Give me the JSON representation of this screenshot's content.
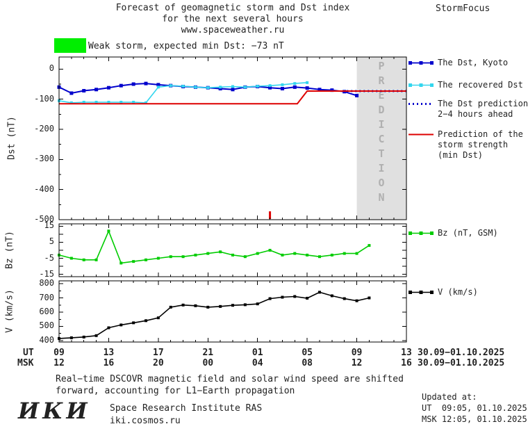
{
  "header": {
    "title_line1": "Forecast of geomagnetic storm and Dst index",
    "title_line2": "for the next several hours",
    "title_line3": "www.spaceweather.ru",
    "brand": "StormFocus"
  },
  "storm_banner": {
    "text": "Weak storm, expected min Dst: −73 nT"
  },
  "colors": {
    "dst_kyoto": "#0000cc",
    "recovered": "#33d6ee",
    "prediction": "#0000cc",
    "strength": "#dd0000",
    "bz": "#00cc00",
    "v": "#000000",
    "zone_bg": "#e0e0e0",
    "zone_text": "#b0b0b0",
    "banner": "#00ee00"
  },
  "legend": {
    "dst_kyoto": "The Dst, Kyoto",
    "recovered": "The recovered Dst",
    "prediction_line1": "The Dst prediction",
    "prediction_line2": "2−4 hours ahead",
    "strength_line1": "Prediction of the",
    "strength_line2": "storm strength",
    "strength_line3": "(min Dst)",
    "bz": "Bz (nT, GSM)",
    "v": "V (km/s)"
  },
  "axes": {
    "dst_label": "Dst (nT)",
    "dst_ticks": [
      "0",
      "-100",
      "-200",
      "-300",
      "-400",
      "-500"
    ],
    "bz_label": "Bz (nT)",
    "bz_ticks": [
      "15",
      "5",
      "-5",
      "-15"
    ],
    "v_label": "V (km/s)",
    "v_ticks": [
      "800",
      "700",
      "600",
      "500",
      "400"
    ],
    "ut_label": "UT",
    "msk_label": "MSK",
    "ut_hours": [
      "09",
      "13",
      "17",
      "21",
      "01",
      "05",
      "09",
      "13"
    ],
    "msk_hours": [
      "12",
      "16",
      "20",
      "00",
      "04",
      "08",
      "12",
      "16"
    ],
    "ut_date": "30.09−01.10.2025",
    "msk_date": "30.09−01.10.2025"
  },
  "prediction_zone_label": "PREDICTION",
  "footer": {
    "note_line1": "Real−time DSCOVR magnetic field and solar wind speed are shifted",
    "note_line2": "forward, accounting for L1−Earth propagation",
    "logo": "ИКИ",
    "institute": "Space Research Institute RAS",
    "site": "iki.cosmos.ru",
    "updated_label": "Updated at:",
    "updated_ut": "UT  09:05, 01.10.2025",
    "updated_msk": "MSK 12:05, 01.10.2025"
  },
  "chart_data": [
    {
      "type": "line",
      "panel": "dst",
      "ylabel": "Dst (nT)",
      "ylim": [
        -500,
        40
      ],
      "xlim_hours": [
        0,
        28
      ],
      "x_unit": "hours since 30.09.2025 09:00 UT",
      "prediction_zone": {
        "x_start": 24,
        "x_end": 28,
        "label": "PREDICTION"
      },
      "event_tick": {
        "x": 17,
        "color": "#dd0000"
      },
      "series": [
        {
          "id": "kyoto",
          "name": "The Dst, Kyoto",
          "color": "#0000cc",
          "marker": "square",
          "x": [
            0,
            1,
            2,
            3,
            4,
            5,
            6,
            7,
            8,
            9,
            10,
            11,
            12,
            13,
            14,
            15,
            16,
            17,
            18,
            19,
            20,
            21,
            22,
            23,
            24
          ],
          "y": [
            -60,
            -80,
            -72,
            -68,
            -62,
            -55,
            -50,
            -48,
            -52,
            -55,
            -58,
            -60,
            -62,
            -65,
            -68,
            -60,
            -58,
            -62,
            -65,
            -60,
            -63,
            -68,
            -70,
            -75,
            -88
          ]
        },
        {
          "id": "recovered",
          "name": "The recovered Dst",
          "color": "#33d6ee",
          "marker": "square",
          "x": [
            0,
            1,
            2,
            3,
            4,
            5,
            6,
            7,
            8,
            9,
            10,
            11,
            12,
            13,
            14,
            15,
            16,
            17,
            18,
            19,
            20
          ],
          "y": [
            -105,
            -112,
            -110,
            -110,
            -110,
            -110,
            -110,
            -112,
            -60,
            -55,
            -57,
            -60,
            -62,
            -60,
            -58,
            -60,
            -57,
            -55,
            -52,
            -48,
            -45
          ]
        },
        {
          "id": "prediction",
          "name": "The Dst prediction 2−4 hours ahead",
          "color": "#0000cc",
          "style": "dotted",
          "x": [
            23.2,
            28
          ],
          "y": [
            -73,
            -73
          ]
        },
        {
          "id": "strength",
          "name": "Prediction of the storm strength (min Dst)",
          "color": "#dd0000",
          "x": [
            0,
            19.2,
            20,
            28
          ],
          "y": [
            -115,
            -115,
            -73,
            -73
          ]
        }
      ]
    },
    {
      "type": "line",
      "panel": "bz",
      "ylabel": "Bz (nT)",
      "ylim": [
        -16.5,
        16.5
      ],
      "xlim_hours": [
        0,
        28
      ],
      "series": [
        {
          "id": "bz",
          "name": "Bz (nT, GSM)",
          "color": "#00cc00",
          "marker": "square",
          "x": [
            0,
            1,
            2,
            3,
            4,
            5,
            6,
            7,
            8,
            9,
            10,
            11,
            12,
            13,
            14,
            15,
            16,
            17,
            18,
            19,
            20,
            21,
            22,
            23,
            24,
            25
          ],
          "y": [
            -3,
            -5,
            -6,
            -6,
            12,
            -8,
            -7,
            -6,
            -5,
            -4,
            -4,
            -3,
            -2,
            -1,
            -3,
            -4,
            -2,
            0,
            -3,
            -2,
            -3,
            -4,
            -3,
            -2,
            -2,
            3
          ]
        }
      ]
    },
    {
      "type": "line",
      "panel": "v",
      "ylabel": "V (km/s)",
      "ylim": [
        390,
        820
      ],
      "xlim_hours": [
        0,
        28
      ],
      "series": [
        {
          "id": "v",
          "name": "V (km/s)",
          "color": "#000000",
          "marker": "square",
          "x": [
            0,
            1,
            2,
            3,
            4,
            5,
            6,
            7,
            8,
            9,
            10,
            11,
            12,
            13,
            14,
            15,
            16,
            17,
            18,
            19,
            20,
            21,
            22,
            23,
            24,
            25
          ],
          "y": [
            415,
            420,
            425,
            435,
            490,
            510,
            525,
            540,
            560,
            635,
            650,
            645,
            635,
            640,
            648,
            652,
            658,
            695,
            705,
            710,
            698,
            740,
            715,
            695,
            680,
            700
          ]
        }
      ]
    }
  ]
}
